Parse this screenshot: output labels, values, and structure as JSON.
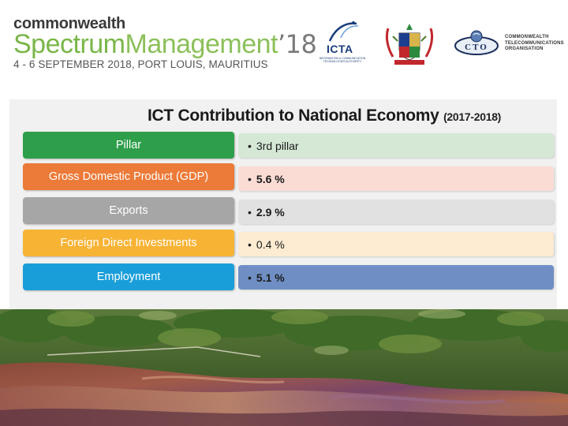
{
  "header": {
    "brand_top": "commonwealth",
    "brand_word1": "Spectrum",
    "brand_word2": "Management",
    "brand_year": "’18",
    "event_date": "4 - 6 SEPTEMBER 2018, PORT LOUIS, MAURITIUS",
    "logos": {
      "icta_label": "ICTA",
      "icta_subtext": "INFORMATION & COMMUNICATION TECHNOLOGIES AUTHORITY",
      "cto_label": "CTO",
      "cto_text_line1": "COMMONWEALTH",
      "cto_text_line2": "TELECOMMUNICATIONS",
      "cto_text_line3": "ORGANISATION"
    }
  },
  "slide": {
    "title": "ICT Contribution to National Economy",
    "title_period": "(2017-2018)",
    "rows": [
      {
        "label": "Pillar",
        "value": "3rd pillar",
        "left_color": "#2e9e4a",
        "right_color": "#d4e8d5"
      },
      {
        "label": "Gross Domestic Product (GDP)",
        "value": "5.6 %",
        "left_color": "#ec7a38",
        "right_color": "#fbdcd4"
      },
      {
        "label": "Exports",
        "value": "2.9 %",
        "left_color": "#a6a6a6",
        "right_color": "#e1e1e1"
      },
      {
        "label": "Foreign Direct Investments",
        "value": "0.4 %",
        "left_color": "#f7b334",
        "right_color": "#fdebd2"
      },
      {
        "label": "Employment",
        "value": "5.1 %",
        "left_color": "#1a9ed9",
        "right_color": "#6f8fc4"
      }
    ]
  },
  "colors": {
    "brand_green": "#7ab648",
    "brand_grey": "#7a7a7a",
    "panel_bg": "#f0f1f0"
  }
}
